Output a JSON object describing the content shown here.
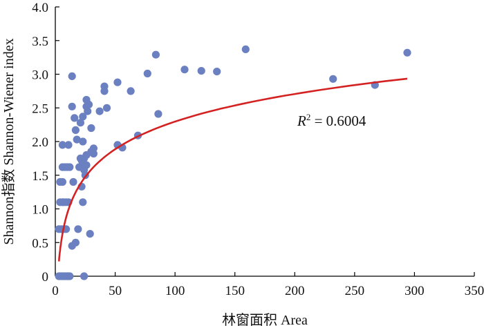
{
  "chart_data": {
    "type": "scatter",
    "title": "",
    "xlabel": "林窗面积 Area",
    "ylabel": "Shannon指数 Shannon-Wiener index",
    "xlim": [
      0,
      350
    ],
    "ylim": [
      0,
      4.0
    ],
    "x_ticks": [
      "0",
      "50",
      "100",
      "150",
      "200",
      "250",
      "300",
      "350"
    ],
    "y_ticks": [
      "0",
      "0.5",
      "1.0",
      "1.5",
      "2.0",
      "2.5",
      "3.0",
      "3.5",
      "4.0"
    ],
    "grid": false,
    "legend": "none",
    "point_color": "#6b80c0",
    "trend_color": "#d42121",
    "trendline": {
      "type": "logarithmic",
      "r_squared_prefix": "R",
      "r_squared_exponent": "2",
      "r_squared_value": " = 0.6004",
      "coefficients": {
        "a": 0.592,
        "b": -0.43
      },
      "x_range": [
        3,
        294
      ]
    },
    "points": [
      [
        3,
        0.0
      ],
      [
        4,
        0.0
      ],
      [
        5,
        0.0
      ],
      [
        6,
        0.0
      ],
      [
        7,
        0.0
      ],
      [
        8,
        0.0
      ],
      [
        9,
        0.0
      ],
      [
        10,
        0.0
      ],
      [
        11,
        0.0
      ],
      [
        12,
        0.0
      ],
      [
        24,
        0.0
      ],
      [
        3,
        0.7
      ],
      [
        5,
        0.7
      ],
      [
        7,
        0.7
      ],
      [
        9,
        0.7
      ],
      [
        19,
        0.7
      ],
      [
        4,
        1.1
      ],
      [
        6,
        1.1
      ],
      [
        7,
        1.1
      ],
      [
        9,
        1.1
      ],
      [
        11,
        1.1
      ],
      [
        23,
        1.1
      ],
      [
        4,
        1.4
      ],
      [
        6,
        1.4
      ],
      [
        15,
        1.4
      ],
      [
        6,
        1.62
      ],
      [
        8,
        1.62
      ],
      [
        10,
        1.62
      ],
      [
        12,
        1.62
      ],
      [
        20,
        1.62
      ],
      [
        6,
        1.95
      ],
      [
        11,
        1.95
      ],
      [
        14,
        0.45
      ],
      [
        17,
        0.5
      ],
      [
        29,
        0.63
      ],
      [
        22,
        1.33
      ],
      [
        25,
        1.5
      ],
      [
        24,
        1.58
      ],
      [
        26,
        1.65
      ],
      [
        23,
        1.68
      ],
      [
        22,
        1.72
      ],
      [
        24,
        1.75
      ],
      [
        26,
        1.8
      ],
      [
        21,
        1.75
      ],
      [
        18,
        2.03
      ],
      [
        23,
        2.0
      ],
      [
        32,
        1.82
      ],
      [
        32,
        1.9
      ],
      [
        30,
        1.85
      ],
      [
        17,
        2.17
      ],
      [
        16,
        2.35
      ],
      [
        21,
        2.28
      ],
      [
        23,
        2.37
      ],
      [
        30,
        2.2
      ],
      [
        14,
        2.52
      ],
      [
        27,
        2.45
      ],
      [
        26,
        2.52
      ],
      [
        28,
        2.55
      ],
      [
        26,
        2.62
      ],
      [
        37,
        2.45
      ],
      [
        43,
        2.5
      ],
      [
        41,
        2.75
      ],
      [
        41,
        2.82
      ],
      [
        52,
        2.88
      ],
      [
        63,
        2.75
      ],
      [
        14,
        2.97
      ],
      [
        52,
        1.95
      ],
      [
        56,
        1.91
      ],
      [
        69,
        2.09
      ],
      [
        86,
        2.41
      ],
      [
        77,
        3.01
      ],
      [
        84,
        3.29
      ],
      [
        108,
        3.07
      ],
      [
        122,
        3.05
      ],
      [
        135,
        3.04
      ],
      [
        159,
        3.37
      ],
      [
        232,
        2.93
      ],
      [
        267,
        2.84
      ],
      [
        294,
        3.32
      ]
    ]
  }
}
